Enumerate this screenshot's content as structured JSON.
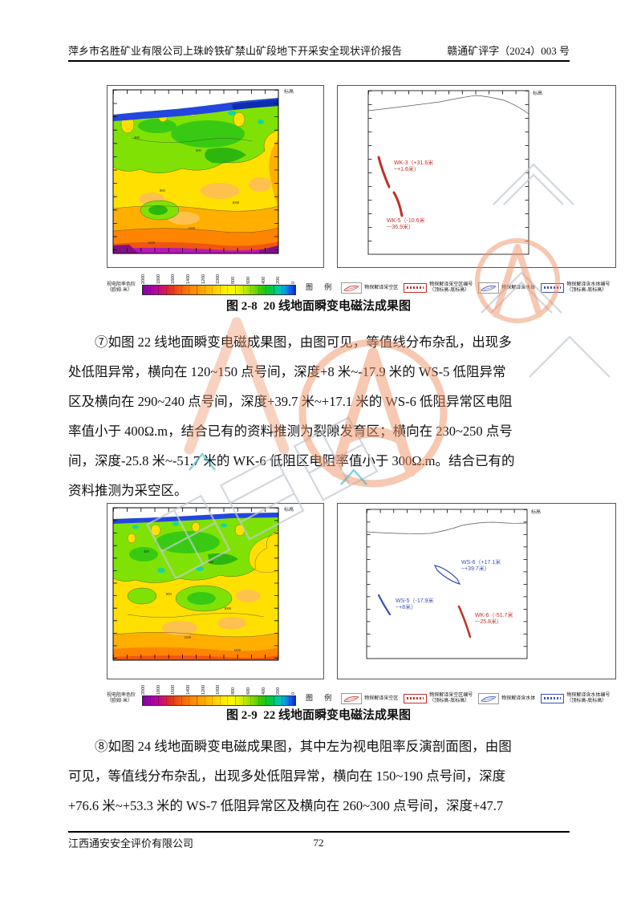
{
  "header": {
    "left_title": "萍乡市名胜矿业有限公司上珠岭铁矿禁山矿段地下开采安全现状评价报告",
    "right_doc_number": "赣通矿评字（2024）003 号"
  },
  "figures": {
    "fig28": {
      "caption": "图 2-8  20 线地面瞬变电磁法成果图",
      "elevation_label": "标高",
      "contour_labels": [
        "400",
        "600",
        "800",
        "1000",
        "1200",
        "1400"
      ],
      "anomalies": {
        "wk3_line1": "WK-3（+31.6米",
        "wk3_line2": "~+1.6米）",
        "wk5_line1": "WK-5（-10.6米",
        "wk5_line2": "~-36.9米）"
      }
    },
    "fig29": {
      "caption": "图 2-9  22 线地面瞬变电磁法成果图",
      "elevation_label": "标高",
      "contour_labels": [
        "400",
        "600",
        "800",
        "1000",
        "1200",
        "1400"
      ],
      "anomalies": {
        "ws6_line1": "WS-6（+17.1米",
        "ws6_line2": "~+39.7米）",
        "ws5_line1": "WS-5（-17.9米",
        "ws5_line2": "~+8米）",
        "wk6_line1": "WK-6（-51.7米",
        "wk6_line2": "~-25.8米）"
      }
    }
  },
  "colorbar": {
    "label_line1": "视电阻率色阶",
    "label_line2": "（欧姆·米）",
    "ticks": [
      "2000",
      "1800",
      "1600",
      "1400",
      "1200",
      "1000",
      "800",
      "600",
      "400",
      "200",
      "0"
    ]
  },
  "legend": {
    "title": "图 例",
    "items": [
      {
        "label": "物探解译采空区"
      },
      {
        "label_line1": "物探解译采空区编号",
        "label_line2": "（顶标高-底标高）"
      },
      {
        "label": "物探解译含水体"
      },
      {
        "label_line1": "物探解译含水体编号",
        "label_line2": "（顶标高-底标高）"
      }
    ]
  },
  "paragraphs": {
    "p7": {
      "lines": [
        "⑦如图 22 线地面瞬变电磁成果图，由图可见，等值线分布杂乱，出现多",
        "处低阻异常，横向在 120~150 点号间，深度+8 米~-17.9 米的 WS-5 低阻异常",
        "区及横向在 290~240 点号间，深度+39.7 米~+17.1 米的 WS-6 低阻异常区电阻",
        "率值小于 400Ω.m，结合已有的资料推测为裂隙发育区；横向在 230~250 点号",
        "间，深度-25.8 米~-51.7 米的 WK-6 低阻区电阻率值小于 300Ω.m。结合已有的",
        "资料推测为采空区。"
      ]
    },
    "p8": {
      "lines": [
        "⑧如图 24 线地面瞬变电磁成果图，其中左为视电阻率反演剖面图，由图",
        "可见，等值线分布杂乱，出现多处低阻异常，横向在 150~190 点号间，深度",
        "+76.6 米~+53.3 米的 WS-7 低阻异常区及横向在 260~300 点号间，深度+47.7"
      ]
    }
  },
  "footer": {
    "company": "江西通安安全评价有限公司",
    "page_number": "72"
  },
  "colors": {
    "goaf_red": "#c03028",
    "water_blue": "#3a50b4",
    "stamp_orange": "#ef9064"
  }
}
